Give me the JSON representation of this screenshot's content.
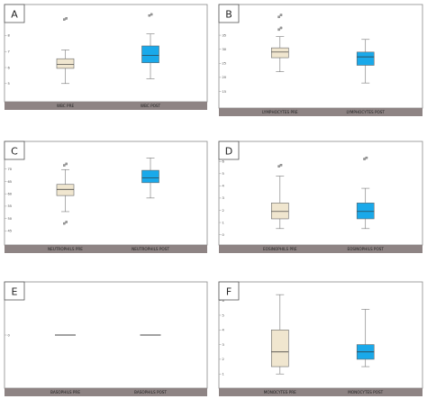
{
  "colors": {
    "pre": "#f0e6cf",
    "post": "#1aa9ea",
    "strip": "#8e8484"
  },
  "chart_data": [
    {
      "type": "box",
      "panel_label": "A",
      "categories": [
        "WBC PRE",
        "WBC POST"
      ],
      "yticks": [
        "5",
        "6",
        "7",
        "8",
        "9"
      ],
      "ylim": [
        4.2,
        9.6
      ],
      "boxes": [
        {
          "min": 5.0,
          "q1": 5.95,
          "median": 6.2,
          "q3": 6.55,
          "max": 7.1,
          "outliers": [
            9.0,
            9.07
          ]
        },
        {
          "min": 5.3,
          "q1": 6.3,
          "median": 6.75,
          "q3": 7.35,
          "max": 8.1,
          "outliers": [
            9.25,
            9.32
          ]
        }
      ]
    },
    {
      "type": "box",
      "panel_label": "B",
      "categories": [
        "LYMPHOCYTES PRE",
        "LYMPHOCYTES POST"
      ],
      "yticks": [
        "15",
        "20",
        "25",
        "30",
        "35",
        "40"
      ],
      "ylim": [
        11,
        44
      ],
      "boxes": [
        {
          "min": 22.0,
          "q1": 27.0,
          "median": 29.0,
          "q3": 30.5,
          "max": 34.5,
          "outliers": [
            37.0,
            37.6,
            41.5,
            42.2
          ]
        },
        {
          "min": 18.0,
          "q1": 24.3,
          "median": 27.3,
          "q3": 29.0,
          "max": 33.5,
          "outliers": []
        }
      ]
    },
    {
      "type": "box",
      "panel_label": "C",
      "categories": [
        "NEUTROPHILS PRE",
        "NEUTROPHILS POST"
      ],
      "yticks": [
        "45",
        "50",
        "55",
        "60",
        "65",
        "70",
        "75"
      ],
      "ylim": [
        41.5,
        79
      ],
      "boxes": [
        {
          "min": 52.8,
          "q1": 59.3,
          "median": 61.8,
          "q3": 63.8,
          "max": 69.8,
          "outliers": [
            48.0,
            48.6,
            71.5,
            72.1
          ]
        },
        {
          "min": 58.3,
          "q1": 64.5,
          "median": 66.5,
          "q3": 69.5,
          "max": 74.5,
          "outliers": []
        }
      ]
    },
    {
      "type": "box",
      "panel_label": "D",
      "categories": [
        "EOSINOPHILS PRE",
        "EOSINOPHILS POST"
      ],
      "yticks": [
        "0",
        "1",
        "2",
        "3",
        "4",
        "5",
        "6"
      ],
      "ylim": [
        -0.4,
        7.2
      ],
      "boxes": [
        {
          "min": 0.5,
          "q1": 1.3,
          "median": 1.9,
          "q3": 2.6,
          "max": 4.8,
          "outliers": [
            5.6,
            5.7
          ]
        },
        {
          "min": 0.5,
          "q1": 1.3,
          "median": 1.9,
          "q3": 2.6,
          "max": 3.8,
          "outliers": [
            6.2,
            6.3
          ]
        }
      ]
    },
    {
      "type": "box",
      "panel_label": "E",
      "categories": [
        "BASOPHILS PRE",
        "BASOPHILS POST"
      ],
      "yticks": [
        "0"
      ],
      "ylim": [
        -1,
        1
      ],
      "boxes": [
        {
          "min": 0,
          "q1": 0,
          "median": 0,
          "q3": 0,
          "max": 0,
          "outliers": []
        },
        {
          "min": 0,
          "q1": 0,
          "median": 0,
          "q3": 0,
          "max": 0,
          "outliers": []
        }
      ]
    },
    {
      "type": "box",
      "panel_label": "F",
      "categories": [
        "MONOCYTES PRE",
        "MONOCYTES POST"
      ],
      "yticks": [
        "1",
        "2",
        "3",
        "4",
        "5",
        "6"
      ],
      "ylim": [
        0.4,
        6.9
      ],
      "boxes": [
        {
          "min": 1.0,
          "q1": 1.5,
          "median": 2.5,
          "q3": 4.0,
          "max": 6.4,
          "outliers": []
        },
        {
          "min": 1.5,
          "q1": 2.0,
          "median": 2.5,
          "q3": 3.0,
          "max": 5.4,
          "outliers": []
        }
      ]
    }
  ]
}
